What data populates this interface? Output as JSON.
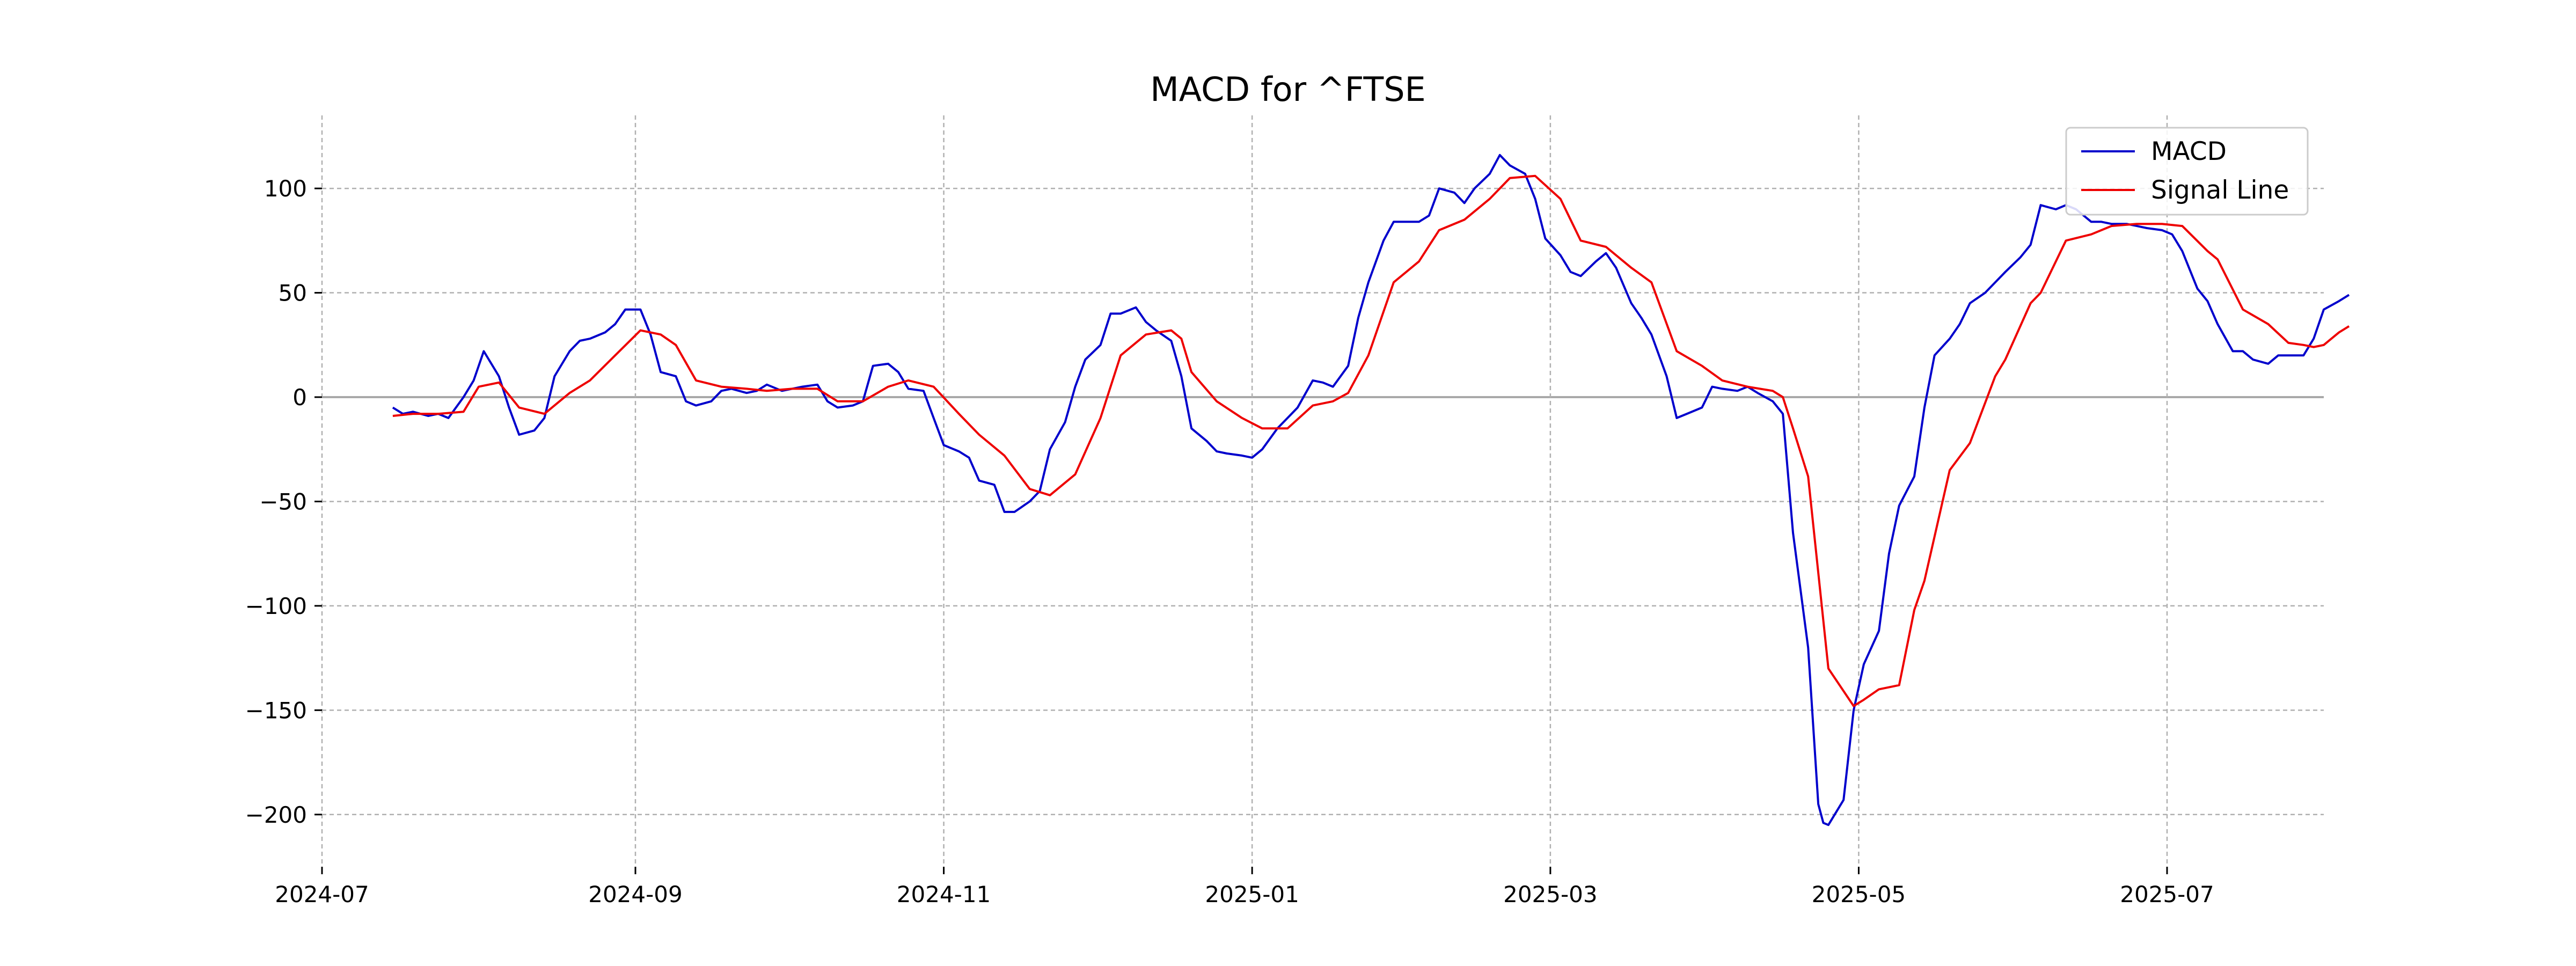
{
  "chart_data": {
    "type": "line",
    "title": "MACD for ^FTSE",
    "xlabel": "",
    "ylabel": "",
    "xlim": [
      "2024-07-01",
      "2025-08-01"
    ],
    "ylim": [
      -225,
      135
    ],
    "x_ticks": [
      "2024-07-01",
      "2024-09-01",
      "2024-11-01",
      "2025-01-01",
      "2025-03-01",
      "2025-05-01",
      "2025-07-01"
    ],
    "x_tick_labels": [
      "2024-07",
      "2024-09",
      "2024-11",
      "2025-01",
      "2025-03",
      "2025-05",
      "2025-07"
    ],
    "y_ticks": [
      -200,
      -150,
      -100,
      -50,
      0,
      50,
      100
    ],
    "y_tick_labels": [
      "−200",
      "−150",
      "−100",
      "−50",
      "0",
      "50",
      "100"
    ],
    "grid": true,
    "zero_line": true,
    "legend_position": "top-right",
    "series": [
      {
        "name": "MACD",
        "color": "#0000cc",
        "points": [
          [
            "2024-07-15",
            -5
          ],
          [
            "2024-07-17",
            -8
          ],
          [
            "2024-07-19",
            -7
          ],
          [
            "2024-07-22",
            -9
          ],
          [
            "2024-07-24",
            -8
          ],
          [
            "2024-07-26",
            -10
          ],
          [
            "2024-07-29",
            0
          ],
          [
            "2024-07-31",
            8
          ],
          [
            "2024-08-02",
            22
          ],
          [
            "2024-08-05",
            10
          ],
          [
            "2024-08-07",
            -5
          ],
          [
            "2024-08-09",
            -18
          ],
          [
            "2024-08-12",
            -16
          ],
          [
            "2024-08-14",
            -10
          ],
          [
            "2024-08-16",
            10
          ],
          [
            "2024-08-19",
            22
          ],
          [
            "2024-08-21",
            27
          ],
          [
            "2024-08-23",
            28
          ],
          [
            "2024-08-26",
            31
          ],
          [
            "2024-08-28",
            35
          ],
          [
            "2024-08-30",
            42
          ],
          [
            "2024-09-02",
            42
          ],
          [
            "2024-09-04",
            30
          ],
          [
            "2024-09-06",
            12
          ],
          [
            "2024-09-09",
            10
          ],
          [
            "2024-09-11",
            -2
          ],
          [
            "2024-09-13",
            -4
          ],
          [
            "2024-09-16",
            -2
          ],
          [
            "2024-09-18",
            3
          ],
          [
            "2024-09-20",
            4
          ],
          [
            "2024-09-23",
            2
          ],
          [
            "2024-09-25",
            3
          ],
          [
            "2024-09-27",
            6
          ],
          [
            "2024-09-30",
            3
          ],
          [
            "2024-10-02",
            4
          ],
          [
            "2024-10-04",
            5
          ],
          [
            "2024-10-07",
            6
          ],
          [
            "2024-10-09",
            -2
          ],
          [
            "2024-10-11",
            -5
          ],
          [
            "2024-10-14",
            -4
          ],
          [
            "2024-10-16",
            -2
          ],
          [
            "2024-10-18",
            15
          ],
          [
            "2024-10-21",
            16
          ],
          [
            "2024-10-23",
            12
          ],
          [
            "2024-10-25",
            4
          ],
          [
            "2024-10-28",
            3
          ],
          [
            "2024-10-30",
            -10
          ],
          [
            "2024-11-01",
            -23
          ],
          [
            "2024-11-04",
            -26
          ],
          [
            "2024-11-06",
            -29
          ],
          [
            "2024-11-08",
            -40
          ],
          [
            "2024-11-11",
            -42
          ],
          [
            "2024-11-13",
            -55
          ],
          [
            "2024-11-15",
            -55
          ],
          [
            "2024-11-18",
            -50
          ],
          [
            "2024-11-20",
            -45
          ],
          [
            "2024-11-22",
            -25
          ],
          [
            "2024-11-25",
            -12
          ],
          [
            "2024-11-27",
            5
          ],
          [
            "2024-11-29",
            18
          ],
          [
            "2024-12-02",
            25
          ],
          [
            "2024-12-04",
            40
          ],
          [
            "2024-12-06",
            40
          ],
          [
            "2024-12-09",
            43
          ],
          [
            "2024-12-11",
            36
          ],
          [
            "2024-12-13",
            32
          ],
          [
            "2024-12-16",
            27
          ],
          [
            "2024-12-18",
            10
          ],
          [
            "2024-12-20",
            -15
          ],
          [
            "2024-12-23",
            -21
          ],
          [
            "2024-12-25",
            -26
          ],
          [
            "2024-12-27",
            -27
          ],
          [
            "2024-12-30",
            -28
          ],
          [
            "2025-01-01",
            -29
          ],
          [
            "2025-01-03",
            -25
          ],
          [
            "2025-01-06",
            -15
          ],
          [
            "2025-01-08",
            -10
          ],
          [
            "2025-01-10",
            -5
          ],
          [
            "2025-01-13",
            8
          ],
          [
            "2025-01-15",
            7
          ],
          [
            "2025-01-17",
            5
          ],
          [
            "2025-01-20",
            15
          ],
          [
            "2025-01-22",
            38
          ],
          [
            "2025-01-24",
            55
          ],
          [
            "2025-01-27",
            75
          ],
          [
            "2025-01-29",
            84
          ],
          [
            "2025-01-31",
            84
          ],
          [
            "2025-02-03",
            84
          ],
          [
            "2025-02-05",
            87
          ],
          [
            "2025-02-07",
            100
          ],
          [
            "2025-02-10",
            98
          ],
          [
            "2025-02-12",
            93
          ],
          [
            "2025-02-14",
            100
          ],
          [
            "2025-02-17",
            107
          ],
          [
            "2025-02-19",
            116
          ],
          [
            "2025-02-21",
            111
          ],
          [
            "2025-02-24",
            107
          ],
          [
            "2025-02-26",
            95
          ],
          [
            "2025-02-28",
            76
          ],
          [
            "2025-03-03",
            68
          ],
          [
            "2025-03-05",
            60
          ],
          [
            "2025-03-07",
            58
          ],
          [
            "2025-03-10",
            65
          ],
          [
            "2025-03-12",
            69
          ],
          [
            "2025-03-14",
            62
          ],
          [
            "2025-03-17",
            45
          ],
          [
            "2025-03-19",
            38
          ],
          [
            "2025-03-21",
            30
          ],
          [
            "2025-03-24",
            10
          ],
          [
            "2025-03-26",
            -10
          ],
          [
            "2025-03-28",
            -8
          ],
          [
            "2025-03-31",
            -5
          ],
          [
            "2025-04-02",
            5
          ],
          [
            "2025-04-04",
            4
          ],
          [
            "2025-04-07",
            3
          ],
          [
            "2025-04-09",
            5
          ],
          [
            "2025-04-11",
            2
          ],
          [
            "2025-04-14",
            -2
          ],
          [
            "2025-04-16",
            -8
          ],
          [
            "2025-04-18",
            -65
          ],
          [
            "2025-04-21",
            -120
          ],
          [
            "2025-04-23",
            -195
          ],
          [
            "2025-04-24",
            -204
          ],
          [
            "2025-04-25",
            -205
          ],
          [
            "2025-04-28",
            -193
          ],
          [
            "2025-04-30",
            -150
          ],
          [
            "2025-05-02",
            -128
          ],
          [
            "2025-05-05",
            -112
          ],
          [
            "2025-05-07",
            -75
          ],
          [
            "2025-05-09",
            -52
          ],
          [
            "2025-05-12",
            -38
          ],
          [
            "2025-05-14",
            -5
          ],
          [
            "2025-05-16",
            20
          ],
          [
            "2025-05-19",
            28
          ],
          [
            "2025-05-21",
            35
          ],
          [
            "2025-05-23",
            45
          ],
          [
            "2025-05-26",
            50
          ],
          [
            "2025-05-28",
            55
          ],
          [
            "2025-05-30",
            60
          ],
          [
            "2025-06-02",
            67
          ],
          [
            "2025-06-04",
            73
          ],
          [
            "2025-06-06",
            92
          ],
          [
            "2025-06-09",
            90
          ],
          [
            "2025-06-11",
            92
          ],
          [
            "2025-06-13",
            90
          ],
          [
            "2025-06-16",
            84
          ],
          [
            "2025-06-18",
            84
          ],
          [
            "2025-06-20",
            83
          ],
          [
            "2025-06-23",
            83
          ],
          [
            "2025-06-25",
            82
          ],
          [
            "2025-06-27",
            81
          ],
          [
            "2025-06-30",
            80
          ],
          [
            "2025-07-02",
            78
          ],
          [
            "2025-07-04",
            70
          ],
          [
            "2025-07-07",
            52
          ],
          [
            "2025-07-09",
            46
          ],
          [
            "2025-07-11",
            35
          ],
          [
            "2025-07-14",
            22
          ],
          [
            "2025-07-16",
            22
          ],
          [
            "2025-07-18",
            18
          ],
          [
            "2025-07-21",
            16
          ],
          [
            "2025-07-23",
            20
          ],
          [
            "2025-07-25",
            20
          ],
          [
            "2025-07-28",
            20
          ],
          [
            "2025-07-30",
            28
          ],
          [
            "2025-08-01",
            42
          ],
          [
            "2025-08-04",
            46
          ],
          [
            "2025-08-06",
            49
          ]
        ]
      },
      {
        "name": "Signal Line",
        "color": "#ee0000",
        "points": [
          [
            "2024-07-15",
            -9
          ],
          [
            "2024-07-19",
            -8
          ],
          [
            "2024-07-24",
            -8
          ],
          [
            "2024-07-29",
            -7
          ],
          [
            "2024-08-01",
            5
          ],
          [
            "2024-08-05",
            7
          ],
          [
            "2024-08-09",
            -5
          ],
          [
            "2024-08-14",
            -8
          ],
          [
            "2024-08-19",
            2
          ],
          [
            "2024-08-23",
            8
          ],
          [
            "2024-08-28",
            20
          ],
          [
            "2024-09-02",
            32
          ],
          [
            "2024-09-06",
            30
          ],
          [
            "2024-09-09",
            25
          ],
          [
            "2024-09-13",
            8
          ],
          [
            "2024-09-18",
            5
          ],
          [
            "2024-09-23",
            4
          ],
          [
            "2024-09-27",
            3
          ],
          [
            "2024-10-02",
            4
          ],
          [
            "2024-10-07",
            4
          ],
          [
            "2024-10-11",
            -2
          ],
          [
            "2024-10-16",
            -2
          ],
          [
            "2024-10-21",
            5
          ],
          [
            "2024-10-25",
            8
          ],
          [
            "2024-10-30",
            5
          ],
          [
            "2024-11-04",
            -8
          ],
          [
            "2024-11-08",
            -18
          ],
          [
            "2024-11-13",
            -28
          ],
          [
            "2024-11-18",
            -44
          ],
          [
            "2024-11-22",
            -47
          ],
          [
            "2024-11-27",
            -37
          ],
          [
            "2024-12-02",
            -10
          ],
          [
            "2024-12-06",
            20
          ],
          [
            "2024-12-11",
            30
          ],
          [
            "2024-12-16",
            32
          ],
          [
            "2024-12-18",
            28
          ],
          [
            "2024-12-20",
            12
          ],
          [
            "2024-12-25",
            -2
          ],
          [
            "2024-12-30",
            -10
          ],
          [
            "2025-01-03",
            -15
          ],
          [
            "2025-01-08",
            -15
          ],
          [
            "2025-01-13",
            -4
          ],
          [
            "2025-01-17",
            -2
          ],
          [
            "2025-01-20",
            2
          ],
          [
            "2025-01-24",
            20
          ],
          [
            "2025-01-29",
            55
          ],
          [
            "2025-02-03",
            65
          ],
          [
            "2025-02-07",
            80
          ],
          [
            "2025-02-12",
            85
          ],
          [
            "2025-02-17",
            95
          ],
          [
            "2025-02-21",
            105
          ],
          [
            "2025-02-26",
            106
          ],
          [
            "2025-03-03",
            95
          ],
          [
            "2025-03-07",
            75
          ],
          [
            "2025-03-12",
            72
          ],
          [
            "2025-03-17",
            62
          ],
          [
            "2025-03-21",
            55
          ],
          [
            "2025-03-26",
            22
          ],
          [
            "2025-03-31",
            15
          ],
          [
            "2025-04-04",
            8
          ],
          [
            "2025-04-09",
            5
          ],
          [
            "2025-04-14",
            3
          ],
          [
            "2025-04-16",
            0
          ],
          [
            "2025-04-18",
            -15
          ],
          [
            "2025-04-21",
            -38
          ],
          [
            "2025-04-25",
            -130
          ],
          [
            "2025-04-30",
            -148
          ],
          [
            "2025-05-02",
            -145
          ],
          [
            "2025-05-05",
            -140
          ],
          [
            "2025-05-09",
            -138
          ],
          [
            "2025-05-12",
            -102
          ],
          [
            "2025-05-14",
            -88
          ],
          [
            "2025-05-19",
            -35
          ],
          [
            "2025-05-23",
            -22
          ],
          [
            "2025-05-28",
            10
          ],
          [
            "2025-05-30",
            18
          ],
          [
            "2025-06-04",
            45
          ],
          [
            "2025-06-06",
            50
          ],
          [
            "2025-06-11",
            75
          ],
          [
            "2025-06-16",
            78
          ],
          [
            "2025-06-20",
            82
          ],
          [
            "2025-06-25",
            83
          ],
          [
            "2025-06-30",
            83
          ],
          [
            "2025-07-04",
            82
          ],
          [
            "2025-07-09",
            70
          ],
          [
            "2025-07-11",
            66
          ],
          [
            "2025-07-16",
            42
          ],
          [
            "2025-07-21",
            35
          ],
          [
            "2025-07-25",
            26
          ],
          [
            "2025-07-28",
            25
          ],
          [
            "2025-07-30",
            24
          ],
          [
            "2025-08-01",
            25
          ],
          [
            "2025-08-04",
            31
          ],
          [
            "2025-08-06",
            34
          ]
        ]
      }
    ]
  }
}
